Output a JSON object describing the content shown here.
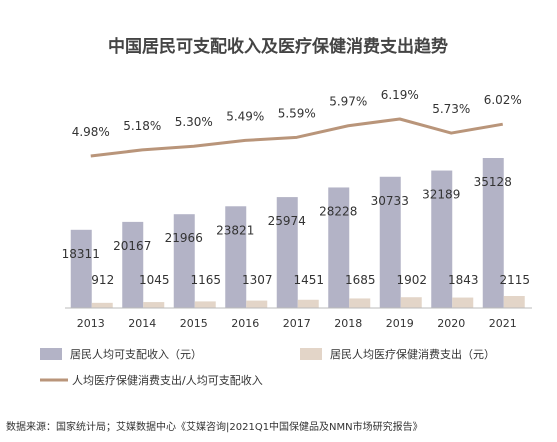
{
  "chart_data": {
    "type": "bar",
    "title": "中国居民可支配收入及医疗保健消费支出趋势",
    "categories": [
      "2013",
      "2014",
      "2015",
      "2016",
      "2017",
      "2018",
      "2019",
      "2020",
      "2021"
    ],
    "series": [
      {
        "name": "居民人均可支配收入（元）",
        "values": [
          18311,
          20167,
          21966,
          23821,
          25974,
          28228,
          30733,
          32189,
          35128
        ],
        "color": "#b3b3c6"
      },
      {
        "name": "居民人均医疗保健消费支出（元）",
        "values": [
          912,
          1045,
          1165,
          1307,
          1451,
          1685,
          1902,
          1843,
          2115
        ],
        "color": "#e3d5c8"
      }
    ],
    "line_series": {
      "name": "人均医疗保健消费支出/人均可支配收入",
      "values": [
        4.98,
        5.18,
        5.3,
        5.49,
        5.59,
        5.97,
        6.19,
        5.73,
        6.02
      ],
      "labels": [
        "4.98%",
        "5.18%",
        "5.30%",
        "5.49%",
        "5.59%",
        "5.97%",
        "6.19%",
        "5.73%",
        "6.02%"
      ],
      "color": "#b9957a"
    },
    "legend_position": "bottom",
    "grid": false
  },
  "source_text": "数据来源：国家统计局；艾媒数据中心《艾媒咨询|2021Q1中国保健品及NMN市场研究报告》"
}
